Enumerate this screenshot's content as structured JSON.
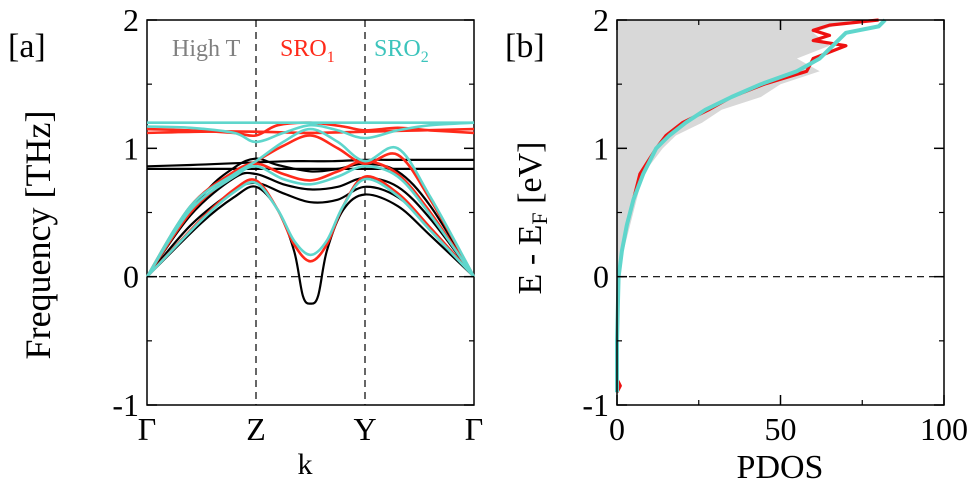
{
  "chart_data": [
    {
      "type": "line",
      "panel_label": "[a]",
      "ylabel": "Frequency [THz]",
      "xlabel": "k",
      "ylim": [
        -1,
        2
      ],
      "yticks": [
        "-1",
        "0",
        "1",
        "2"
      ],
      "xticks": [
        "Γ",
        "Z",
        "Y",
        "Γ"
      ],
      "x_tick_positions": [
        0,
        1,
        2,
        3
      ],
      "legend": {
        "placement": "top",
        "entries": [
          {
            "base": "High T",
            "sub": "",
            "color": "#808080"
          },
          {
            "base": "SRO",
            "sub": "1",
            "color": "#ff2a1a"
          },
          {
            "base": "SRO",
            "sub": "2",
            "color": "#3cc4bc"
          }
        ]
      },
      "colors": {
        "highT": "#000000",
        "sro1": "#ff2a1a",
        "sro2": "#5fd6cc"
      },
      "series": [
        {
          "group": "highT",
          "x": [
            0,
            0.4,
            0.7,
            1,
            1.3,
            1.5,
            1.7,
            2,
            2.3,
            2.6,
            3
          ],
          "y": [
            0.86,
            0.87,
            0.88,
            0.89,
            0.9,
            0.9,
            0.9,
            0.91,
            0.91,
            0.91,
            0.91
          ]
        },
        {
          "group": "highT",
          "x": [
            0,
            0.5,
            1,
            1.5,
            2,
            2.5,
            3
          ],
          "y": [
            0.84,
            0.84,
            0.84,
            0.84,
            0.84,
            0.84,
            0.84
          ]
        },
        {
          "group": "highT",
          "x": [
            0,
            0.5,
            0.8,
            1,
            1.2,
            1.5,
            1.75,
            2,
            2.3,
            2.6,
            3
          ],
          "y": [
            0,
            0.62,
            0.85,
            0.92,
            0.87,
            0.82,
            0.84,
            0.88,
            0.82,
            0.55,
            0
          ]
        },
        {
          "group": "highT",
          "x": [
            0,
            0.4,
            0.8,
            1,
            1.25,
            1.5,
            1.75,
            2,
            2.3,
            2.6,
            3
          ],
          "y": [
            0,
            0.48,
            0.77,
            0.8,
            0.72,
            0.68,
            0.7,
            0.77,
            0.7,
            0.45,
            0
          ]
        },
        {
          "group": "highT",
          "x": [
            0,
            0.4,
            0.8,
            1,
            1.25,
            1.5,
            1.75,
            2,
            2.3,
            2.6,
            3
          ],
          "y": [
            0,
            0.4,
            0.67,
            0.73,
            0.65,
            0.58,
            0.6,
            0.7,
            0.62,
            0.38,
            0
          ]
        },
        {
          "group": "highT",
          "x": [
            0,
            0.5,
            0.8,
            1,
            1.2,
            1.35,
            1.43,
            1.5,
            1.57,
            1.65,
            1.8,
            2,
            2.3,
            2.6,
            3
          ],
          "y": [
            0,
            0.42,
            0.62,
            0.7,
            0.52,
            0.2,
            -0.15,
            -0.21,
            -0.15,
            0.2,
            0.52,
            0.64,
            0.55,
            0.32,
            0
          ]
        },
        {
          "group": "sro1",
          "x": [
            0,
            0.4,
            0.8,
            1,
            1.2,
            1.5,
            1.8,
            2,
            2.3,
            2.6,
            3
          ],
          "y": [
            1.15,
            1.14,
            1.12,
            1.1,
            1.18,
            1.2,
            1.17,
            1.14,
            1.16,
            1.14,
            1.12
          ]
        },
        {
          "group": "sro1",
          "x": [
            0,
            0.5,
            1,
            1.5,
            2,
            2.5,
            3
          ],
          "y": [
            1.12,
            1.13,
            1.13,
            1.12,
            1.13,
            1.14,
            1.15
          ]
        },
        {
          "group": "sro1",
          "x": [
            0,
            0.4,
            0.8,
            1,
            1.25,
            1.5,
            1.75,
            2,
            2.3,
            2.6,
            3
          ],
          "y": [
            0,
            0.55,
            0.82,
            0.9,
            1.02,
            1.1,
            1.0,
            0.88,
            0.95,
            0.6,
            0
          ]
        },
        {
          "group": "sro1",
          "x": [
            0,
            0.4,
            0.8,
            1,
            1.25,
            1.5,
            1.75,
            2,
            2.3,
            2.6,
            3
          ],
          "y": [
            0,
            0.5,
            0.8,
            0.88,
            0.8,
            0.75,
            0.82,
            0.9,
            0.8,
            0.5,
            0
          ]
        },
        {
          "group": "sro1",
          "x": [
            0,
            0.5,
            0.8,
            1,
            1.2,
            1.35,
            1.5,
            1.65,
            1.8,
            2,
            2.3,
            2.6,
            3
          ],
          "y": [
            0,
            0.45,
            0.68,
            0.75,
            0.52,
            0.25,
            0.12,
            0.25,
            0.55,
            0.78,
            0.65,
            0.38,
            0
          ]
        },
        {
          "group": "sro2",
          "x": [
            0,
            0.5,
            1,
            1.5,
            2,
            2.5,
            3
          ],
          "y": [
            1.2,
            1.2,
            1.2,
            1.2,
            1.2,
            1.2,
            1.2
          ]
        },
        {
          "group": "sro2",
          "x": [
            0,
            0.4,
            0.8,
            1,
            1.25,
            1.5,
            1.75,
            2,
            2.3,
            2.6,
            3
          ],
          "y": [
            1.17,
            1.16,
            1.12,
            1.05,
            1.12,
            1.18,
            1.14,
            1.08,
            1.14,
            1.18,
            1.2
          ]
        },
        {
          "group": "sro2",
          "x": [
            0,
            0.4,
            0.8,
            1,
            1.25,
            1.5,
            1.75,
            2,
            2.3,
            2.6,
            3
          ],
          "y": [
            0,
            0.55,
            0.8,
            0.9,
            1.05,
            1.15,
            1.05,
            0.9,
            1.0,
            0.62,
            0
          ]
        },
        {
          "group": "sro2",
          "x": [
            0,
            0.4,
            0.8,
            1,
            1.25,
            1.5,
            1.75,
            2,
            2.3,
            2.6,
            3
          ],
          "y": [
            0,
            0.52,
            0.78,
            0.86,
            0.76,
            0.72,
            0.78,
            0.86,
            0.78,
            0.48,
            0
          ]
        },
        {
          "group": "sro2",
          "x": [
            0,
            0.5,
            0.8,
            1,
            1.2,
            1.35,
            1.5,
            1.65,
            1.8,
            2,
            2.3,
            2.6,
            3
          ],
          "y": [
            0,
            0.44,
            0.66,
            0.73,
            0.52,
            0.28,
            0.17,
            0.28,
            0.55,
            0.76,
            0.63,
            0.36,
            0
          ]
        }
      ],
      "dashed_vertical_at_x": [
        1,
        2
      ],
      "dashed_horizontal_at_y": 0
    },
    {
      "type": "area",
      "panel_label": "[b]",
      "ylabel": {
        "base": "E - E",
        "sub": "F",
        "unit": " [eV]"
      },
      "xlabel": "PDOS",
      "xlim": [
        0,
        100
      ],
      "ylim": [
        -1,
        2
      ],
      "xticks": [
        "0",
        "50",
        "100"
      ],
      "yticks": [
        "-1",
        "0",
        "1",
        "2"
      ],
      "colors": {
        "highT_fill": "#d8d8d8",
        "sro1": "#ee1111",
        "sro2": "#5fd6cc"
      },
      "highT_area": {
        "y": [
          -0.9,
          -0.5,
          0,
          0.2,
          0.4,
          0.6,
          0.8,
          1.0,
          1.1,
          1.2,
          1.3,
          1.4,
          1.5,
          1.6,
          1.7,
          1.8,
          1.9,
          2.0
        ],
        "x": [
          0,
          0,
          1,
          2,
          4,
          6,
          8,
          14,
          18,
          26,
          32,
          44,
          50,
          62,
          55,
          65,
          60,
          72
        ]
      },
      "series": [
        {
          "name": "SRO1",
          "group": "sro1",
          "y": [
            -0.9,
            -0.85,
            -0.8,
            -0.5,
            0,
            0.2,
            0.4,
            0.6,
            0.8,
            1.0,
            1.1,
            1.2,
            1.3,
            1.4,
            1.5,
            1.6,
            1.7,
            1.75,
            1.8,
            1.84,
            1.88,
            1.92,
            1.96,
            2.0
          ],
          "x": [
            0,
            1,
            0,
            0,
            0.5,
            1.5,
            3,
            5,
            7,
            12,
            15,
            20,
            28,
            35,
            45,
            58,
            60,
            65,
            70,
            60,
            65,
            60,
            65,
            80
          ]
        },
        {
          "name": "SRO2",
          "group": "sro2",
          "y": [
            -0.9,
            -0.5,
            0,
            0.2,
            0.4,
            0.6,
            0.8,
            1.0,
            1.1,
            1.2,
            1.3,
            1.4,
            1.5,
            1.6,
            1.7,
            1.8,
            1.9,
            1.95,
            2.0
          ],
          "x": [
            0,
            0,
            0.5,
            1.5,
            3,
            5,
            8,
            12,
            16,
            21,
            27,
            35,
            44,
            55,
            62,
            66,
            70,
            80,
            82
          ]
        }
      ],
      "dashed_horizontal_at_y": 0
    }
  ]
}
